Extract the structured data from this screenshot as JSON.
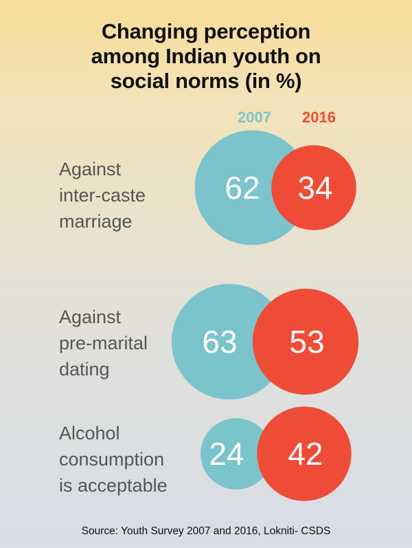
{
  "title_lines": [
    "Changing perception",
    "among Indian youth on",
    "social norms (in %)"
  ],
  "source": "Source: Youth Survey 2007 and 2016, Lokniti- CSDS",
  "colors": {
    "y2007": "#7cc4cc",
    "y2016": "#ef4c37",
    "label": "#555555"
  },
  "chart_data": {
    "type": "bubble",
    "title": "Changing perception among Indian youth on social norms (in %)",
    "series": [
      {
        "name": "2007",
        "values": [
          62,
          63,
          24
        ]
      },
      {
        "name": "2016",
        "values": [
          34,
          53,
          42
        ]
      }
    ],
    "categories": [
      {
        "lines": [
          "Against",
          "inter-caste",
          "marriage"
        ]
      },
      {
        "lines": [
          "Against",
          "pre-marital",
          "dating"
        ]
      },
      {
        "lines": [
          "Alcohol",
          "consumption",
          "is acceptable"
        ]
      }
    ]
  }
}
